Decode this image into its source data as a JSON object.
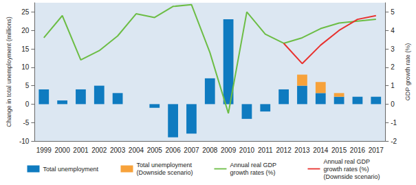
{
  "chart_data": {
    "type": "bar",
    "categories": [
      "1999",
      "2000",
      "2001",
      "2002",
      "2003",
      "2004",
      "2005",
      "2006",
      "2007",
      "2008",
      "2009",
      "2010",
      "2011",
      "2012",
      "2013",
      "2014",
      "2015",
      "2016",
      "2017"
    ],
    "y_label": "Change in total unemployment (millions)",
    "y2_label": "GDP growth rate (%)",
    "ylim": [
      -10,
      27.5
    ],
    "yticks": [
      -10,
      -5,
      0,
      5,
      10,
      15,
      20,
      25
    ],
    "y2lim": [
      -2,
      5.5
    ],
    "y2ticks": [
      -2,
      -1,
      0,
      1,
      2,
      3,
      4,
      5
    ],
    "stacked": true,
    "grid": false,
    "legend": "bottom",
    "series": [
      {
        "name": "Total unemployment",
        "type": "bar",
        "color": "#0f7bc0",
        "values": [
          4,
          1,
          4,
          5,
          3,
          0,
          -1,
          -9,
          -8,
          7,
          23,
          -4,
          -2,
          4,
          5,
          3,
          2,
          2,
          2
        ]
      },
      {
        "name": "Total unemployment (Downside scenario)",
        "type": "bar",
        "color": "#f7a23b",
        "values": [
          null,
          null,
          null,
          null,
          null,
          null,
          null,
          null,
          null,
          null,
          null,
          null,
          null,
          null,
          3,
          3,
          1,
          null,
          null
        ]
      },
      {
        "name": "Annual real GDP growth rates (%)",
        "type": "line",
        "axis": "y2",
        "color": "#6cbd45",
        "values": [
          3.6,
          4.8,
          2.4,
          2.9,
          3.7,
          4.9,
          4.7,
          5.3,
          5.4,
          2.8,
          -0.5,
          5.0,
          3.8,
          3.3,
          3.6,
          4.1,
          4.4,
          4.5,
          4.6
        ]
      },
      {
        "name": "Annual real GDP growth rates (%) (Downside scenario)",
        "type": "line",
        "axis": "y2",
        "color": "#e8312e",
        "values": [
          null,
          null,
          null,
          null,
          null,
          null,
          null,
          null,
          null,
          null,
          null,
          null,
          null,
          3.3,
          2.2,
          3.2,
          4.0,
          4.6,
          4.8
        ]
      }
    ]
  }
}
